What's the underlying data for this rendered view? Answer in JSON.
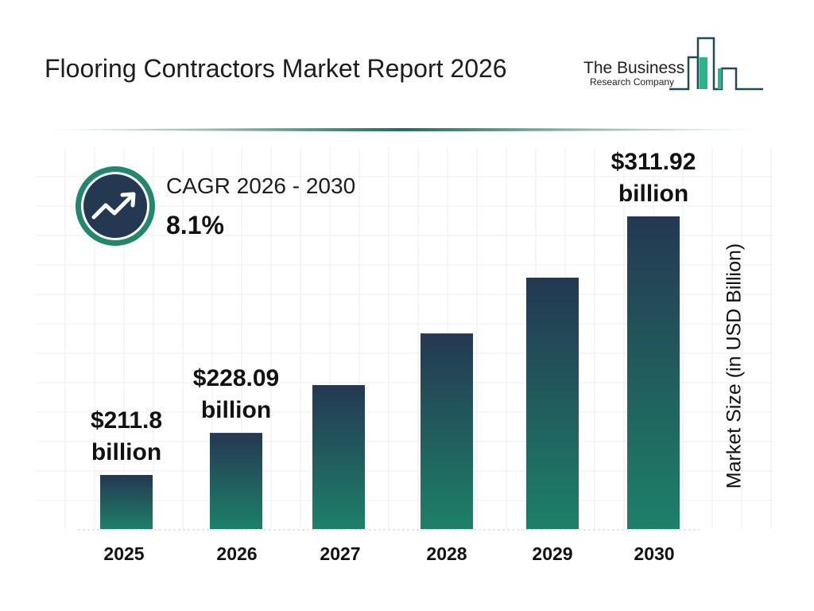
{
  "header": {
    "title": "Flooring Contractors Market Report 2026"
  },
  "logo": {
    "line1": "The Business",
    "line2": "Research Company"
  },
  "cagr": {
    "label": "CAGR 2026 - 2030",
    "value": "8.1%",
    "icon": "trending-up-icon"
  },
  "colors": {
    "bar_top": "#253852",
    "bar_bottom": "#1e8068",
    "accent": "#22876d",
    "navy": "#253852"
  },
  "chart_data": {
    "type": "bar",
    "categories": [
      "2025",
      "2026",
      "2027",
      "2028",
      "2029",
      "2030"
    ],
    "values": [
      211.8,
      228.09,
      246.6,
      266.6,
      288.2,
      311.92
    ],
    "data_labels": [
      "$211.8 billion",
      "$228.09 billion",
      "",
      "",
      "",
      "$311.92 billion"
    ],
    "data_labels_lines": [
      [
        "$211.8",
        "billion"
      ],
      [
        "$228.09",
        "billion"
      ],
      null,
      null,
      null,
      [
        "$311.92",
        "billion"
      ]
    ],
    "ylabel": "Market Size (in USD Billion)",
    "xlabel": "",
    "grid": true
  }
}
